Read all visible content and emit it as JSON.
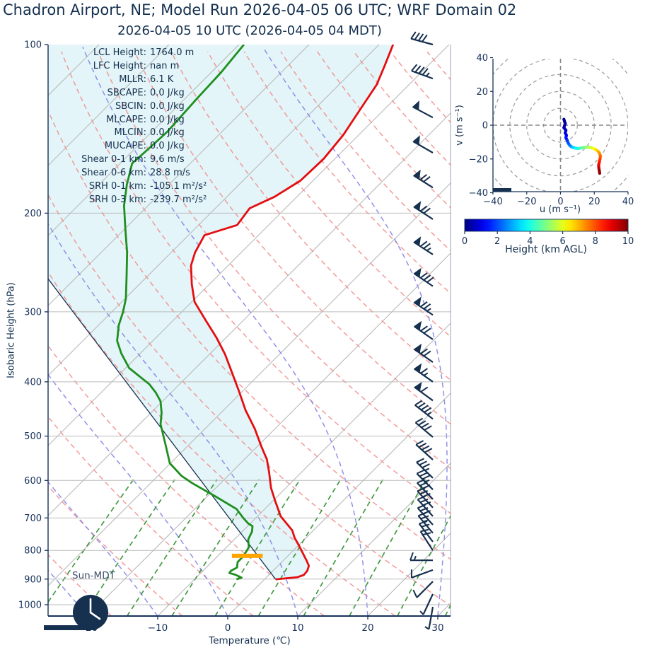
{
  "header": {
    "title": "Chadron Airport, NE; Model Run 2026-04-05 06 UTC; WRF Domain 02",
    "subtitle": "2026-04-05 10 UTC  (2026-04-05 04 MDT)"
  },
  "colors": {
    "navy": "#17325a",
    "temperature": "#e40e11",
    "dewpoint": "#1f8f1f",
    "parcel": "#16304f",
    "isotherm": "#b8b8b8",
    "pressure_grid": "#bbbbbb",
    "dry_adiabat": "#f28a8a",
    "moist_adiabat": "#8585e8",
    "mixing_line": "#2d8f2d",
    "cape_shade": "#e3f5f8",
    "lcl_bar": "#ffa500"
  },
  "chart_data": {
    "type": "skewt-logp-sounding",
    "skewt": {
      "xlabel": "Temperature (℃)",
      "ylabel": "Isobaric Height (hPa)",
      "sun_label": "Sun-MDT",
      "x_tick_values": [
        -20,
        -10,
        0,
        10,
        20,
        30
      ],
      "x_tick_labels": [
        "−20",
        "−10",
        "0",
        "10",
        "20",
        "30"
      ],
      "p_ticks": [
        100,
        200,
        300,
        400,
        500,
        600,
        700,
        800,
        900,
        1000
      ],
      "p_range": [
        100,
        1048
      ],
      "t_range_at_bottom": [
        -25.7,
        31.8
      ],
      "stats": [
        {
          "label": "LCL Height:",
          "value": "1764.0 m"
        },
        {
          "label": "LFC Height:",
          "value": "nan m"
        },
        {
          "label": "MLLR:",
          "value": "6.1 K"
        },
        {
          "label": "SBCAPE:",
          "value": "0.0 J/kg"
        },
        {
          "label": "SBCIN:",
          "value": "0.0 J/kg"
        },
        {
          "label": "MLCAPE:",
          "value": "0.0 J/kg"
        },
        {
          "label": "MLCIN:",
          "value": "0.0 J/kg"
        },
        {
          "label": "MUCAPE:",
          "value": "0.0 J/kg"
        },
        {
          "label": "Shear 0-1 km:",
          "value": "9.6 m/s"
        },
        {
          "label": "Shear 0-6 km:",
          "value": "28.8 m/s"
        },
        {
          "label": "SRH 0-1 km:",
          "value": "-105.1 m²/s²"
        },
        {
          "label": "SRH 0-3 km:",
          "value": "-239.7 m²/s²"
        }
      ],
      "temperature_profile": [
        [
          100,
          -58.0
        ],
        [
          109,
          -56.2
        ],
        [
          118,
          -54.6
        ],
        [
          131,
          -53.4
        ],
        [
          145,
          -52.2
        ],
        [
          160,
          -51.6
        ],
        [
          175,
          -51.8
        ],
        [
          187,
          -53.2
        ],
        [
          196,
          -55.1
        ],
        [
          210,
          -54.5
        ],
        [
          219,
          -57.7
        ],
        [
          235,
          -56.6
        ],
        [
          248,
          -55.3
        ],
        [
          268,
          -52.5
        ],
        [
          288,
          -49.6
        ],
        [
          310,
          -45.5
        ],
        [
          334,
          -41.3
        ],
        [
          357,
          -37.8
        ],
        [
          380,
          -34.8
        ],
        [
          414,
          -30.7
        ],
        [
          450,
          -26.8
        ],
        [
          485,
          -22.9
        ],
        [
          523,
          -19.3
        ],
        [
          550,
          -16.8
        ],
        [
          579,
          -14.7
        ],
        [
          619,
          -12.1
        ],
        [
          655,
          -9.5
        ],
        [
          695,
          -6.7
        ],
        [
          737,
          -3.0
        ],
        [
          760,
          -1.6
        ],
        [
          781,
          -0.1
        ],
        [
          816,
          2.2
        ],
        [
          835,
          3.4
        ],
        [
          852,
          4.4
        ],
        [
          870,
          4.9
        ],
        [
          885,
          5.0
        ],
        [
          893,
          4.4
        ],
        [
          901,
          1.6
        ]
      ],
      "dewpoint_profile": [
        [
          100,
          -79.3
        ],
        [
          112,
          -78.6
        ],
        [
          125,
          -78.3
        ],
        [
          143,
          -77.8
        ],
        [
          152,
          -78.0
        ],
        [
          163,
          -78.3
        ],
        [
          178,
          -76.0
        ],
        [
          194,
          -73.4
        ],
        [
          214,
          -69.8
        ],
        [
          235,
          -66.3
        ],
        [
          259,
          -63.0
        ],
        [
          284,
          -59.9
        ],
        [
          300,
          -58.4
        ],
        [
          317,
          -57.1
        ],
        [
          338,
          -55.1
        ],
        [
          356,
          -52.7
        ],
        [
          378,
          -49.5
        ],
        [
          404,
          -44.3
        ],
        [
          418,
          -42.2
        ],
        [
          433,
          -40.3
        ],
        [
          454,
          -38.5
        ],
        [
          476,
          -37.0
        ],
        [
          515,
          -33.6
        ],
        [
          559,
          -30.1
        ],
        [
          589,
          -26.6
        ],
        [
          607,
          -24.0
        ],
        [
          641,
          -18.8
        ],
        [
          675,
          -14.0
        ],
        [
          700,
          -11.8
        ],
        [
          716,
          -10.3
        ],
        [
          724,
          -9.3
        ],
        [
          740,
          -8.6
        ],
        [
          765,
          -8.0
        ],
        [
          790,
          -6.8
        ],
        [
          820,
          -6.3
        ],
        [
          839,
          -6.3
        ],
        [
          858,
          -5.6
        ],
        [
          870,
          -6.0
        ],
        [
          878,
          -5.9
        ],
        [
          884,
          -4.8
        ],
        [
          895,
          -3.5
        ],
        [
          901,
          -4.0
        ]
      ],
      "parcel_profile": [
        [
          901,
          1.6
        ],
        [
          262,
          -73.8
        ]
      ],
      "lcl_bar": {
        "p": 818,
        "t_center": -5.8,
        "halfwidth_degC": 2.2
      },
      "barbs": [
        [
          100,
          0,
          4,
          0,
          15
        ],
        [
          115,
          0,
          4,
          1,
          20
        ],
        [
          135,
          1,
          0,
          0,
          28
        ],
        [
          156,
          1,
          0,
          0,
          30
        ],
        [
          180,
          1,
          2,
          0,
          32
        ],
        [
          205,
          1,
          2,
          0,
          33
        ],
        [
          237,
          1,
          2,
          1,
          33
        ],
        [
          270,
          1,
          3,
          0,
          34
        ],
        [
          304,
          1,
          2,
          1,
          34
        ],
        [
          336,
          1,
          2,
          0,
          35
        ],
        [
          369,
          1,
          2,
          0,
          35
        ],
        [
          400,
          1,
          1,
          1,
          35
        ],
        [
          432,
          1,
          1,
          0,
          36
        ],
        [
          466,
          0,
          4,
          1,
          38
        ],
        [
          502,
          0,
          4,
          0,
          40
        ],
        [
          551,
          0,
          4,
          0,
          42
        ],
        [
          594,
          0,
          3,
          1,
          44
        ],
        [
          623,
          0,
          3,
          1,
          45
        ],
        [
          648,
          0,
          3,
          0,
          46
        ],
        [
          671,
          0,
          3,
          0,
          47
        ],
        [
          695,
          0,
          3,
          0,
          48
        ],
        [
          720,
          0,
          3,
          0,
          48
        ],
        [
          745,
          0,
          2,
          1,
          50
        ],
        [
          772,
          0,
          2,
          0,
          53
        ],
        [
          800,
          0,
          2,
          0,
          57
        ],
        [
          833,
          0,
          1,
          1,
          0
        ],
        [
          867,
          0,
          1,
          0,
          -20
        ],
        [
          909,
          0,
          1,
          0,
          -45
        ],
        [
          957,
          0,
          0,
          1,
          -65
        ],
        [
          1009,
          0,
          0,
          1,
          -80
        ]
      ],
      "moist_adiabat_starts_degC": [
        -60,
        -50,
        -40,
        -30,
        -20,
        -10,
        0,
        10,
        20,
        30,
        40
      ],
      "dry_adiabat_theta_start": -40,
      "dry_adiabat_theta_end": 200,
      "mixing_ratio_lines_gkg": [
        0.4,
        0.7,
        1.2,
        2,
        3.2,
        5,
        7.8,
        12,
        18.5,
        28
      ]
    },
    "hodograph": {
      "xlabel": "u (m s⁻¹)",
      "ylabel": "v (m s⁻¹)",
      "u_ticks": [
        -40,
        -20,
        0,
        20,
        40
      ],
      "v_ticks": [
        -40,
        -20,
        0,
        20,
        40
      ],
      "ring_radii": [
        10,
        20,
        30,
        40,
        50
      ],
      "trace_uvh": [
        [
          2,
          3.5,
          0
        ],
        [
          2.8,
          1,
          0.25
        ],
        [
          2,
          -1.5,
          0.5
        ],
        [
          3.2,
          -3,
          0.7
        ],
        [
          2.8,
          -4.5,
          0.9
        ],
        [
          3.5,
          -6,
          1.1
        ],
        [
          3.2,
          -7.5,
          1.35
        ],
        [
          4,
          -9,
          1.6
        ],
        [
          4.5,
          -10.5,
          1.9
        ],
        [
          5.5,
          -12,
          2.3
        ],
        [
          6.5,
          -12.8,
          2.7
        ],
        [
          7.5,
          -13.2,
          3.1
        ],
        [
          9,
          -13.6,
          3.5
        ],
        [
          10.5,
          -13.8,
          3.9
        ],
        [
          12,
          -13.6,
          4.3
        ],
        [
          13.5,
          -13.2,
          4.7
        ],
        [
          15,
          -13,
          5.0
        ],
        [
          16.5,
          -13,
          5.3
        ],
        [
          18,
          -13.3,
          5.7
        ],
        [
          19.5,
          -13.8,
          6.0
        ],
        [
          21,
          -14.5,
          6.4
        ],
        [
          22.3,
          -15.5,
          6.8
        ],
        [
          23.2,
          -16.8,
          7.2
        ],
        [
          23.6,
          -18.3,
          7.6
        ],
        [
          23.4,
          -20,
          8.0
        ],
        [
          23,
          -21.8,
          8.4
        ],
        [
          22.6,
          -23.6,
          8.8
        ],
        [
          22.7,
          -25.4,
          9.2
        ],
        [
          23,
          -27,
          9.6
        ],
        [
          23.2,
          -28.5,
          10
        ]
      ]
    },
    "colorbar": {
      "label": "Height (km AGL)",
      "min": 0,
      "max": 10,
      "ticks": [
        0,
        2,
        4,
        6,
        8,
        10
      ],
      "colormap": "jet"
    }
  }
}
